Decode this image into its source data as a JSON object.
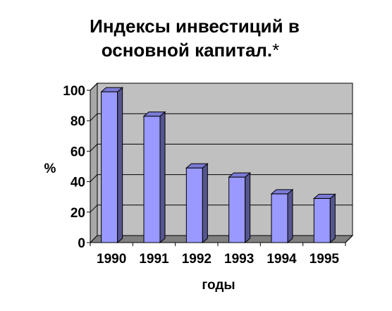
{
  "chart_data": {
    "type": "bar",
    "title_line1": "Индексы инвестиций в",
    "title_line2": "основной капитал.",
    "title_note": "*",
    "categories": [
      "1990",
      "1991",
      "1992",
      "1993",
      "1994",
      "1995"
    ],
    "values": [
      99,
      83,
      49,
      43,
      32,
      29
    ],
    "ylabel": "%",
    "xlabel": "годы",
    "ylim": [
      0,
      100
    ],
    "yticks": [
      "0",
      "20",
      "40",
      "60",
      "80",
      "100"
    ],
    "grid": true,
    "legend": "none",
    "colors": {
      "bar_front": "#9999ff",
      "bar_side": "#55558f",
      "bar_top": "#7b7bd6",
      "plot_back": "#c0c0c0",
      "plot_floor": "#808080",
      "gridline": "#000000"
    }
  }
}
